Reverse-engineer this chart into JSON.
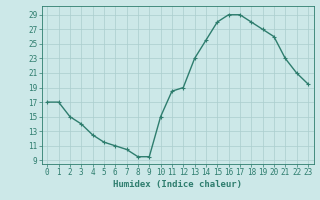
{
  "x": [
    0,
    1,
    2,
    3,
    4,
    5,
    6,
    7,
    8,
    9,
    10,
    11,
    12,
    13,
    14,
    15,
    16,
    17,
    18,
    19,
    20,
    21,
    22,
    23
  ],
  "y": [
    17,
    17,
    15,
    14,
    12.5,
    11.5,
    11,
    10.5,
    9.5,
    9.5,
    15,
    18.5,
    19,
    23,
    25.5,
    28,
    29,
    29,
    28,
    27,
    26,
    23,
    21,
    19.5
  ],
  "color": "#2e7d6e",
  "bg_color": "#cce8e8",
  "grid_color": "#aacece",
  "xlabel": "Humidex (Indice chaleur)",
  "yticks": [
    9,
    11,
    13,
    15,
    17,
    19,
    21,
    23,
    25,
    27,
    29
  ],
  "xticks": [
    0,
    1,
    2,
    3,
    4,
    5,
    6,
    7,
    8,
    9,
    10,
    11,
    12,
    13,
    14,
    15,
    16,
    17,
    18,
    19,
    20,
    21,
    22,
    23
  ],
  "ylim": [
    8.5,
    30.2
  ],
  "xlim": [
    -0.5,
    23.5
  ],
  "linewidth": 1.0,
  "markersize": 3.5,
  "tick_fontsize": 5.5,
  "xlabel_fontsize": 6.5
}
